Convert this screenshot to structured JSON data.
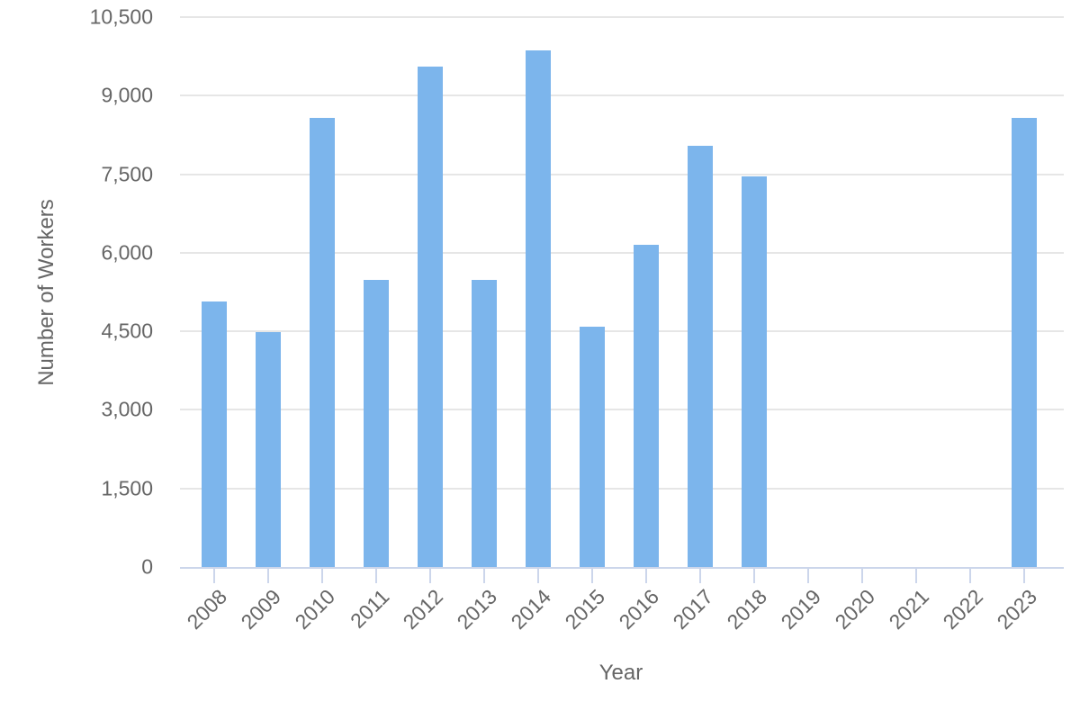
{
  "chart_data": {
    "type": "bar",
    "title": "",
    "xlabel": "Year",
    "ylabel": "Number of Workers",
    "categories": [
      "2008",
      "2009",
      "2010",
      "2011",
      "2012",
      "2013",
      "2014",
      "2015",
      "2016",
      "2017",
      "2018",
      "2019",
      "2020",
      "2021",
      "2022",
      "2023"
    ],
    "values": [
      5070,
      4480,
      8570,
      5480,
      9560,
      5480,
      9870,
      4590,
      6150,
      8050,
      7460,
      0,
      0,
      0,
      0,
      8570
    ],
    "ylim": [
      0,
      10500
    ],
    "yticks": [
      {
        "value": 0,
        "label": "0"
      },
      {
        "value": 1500,
        "label": "1,500"
      },
      {
        "value": 3000,
        "label": "3,000"
      },
      {
        "value": 4500,
        "label": "4,500"
      },
      {
        "value": 6000,
        "label": "6,000"
      },
      {
        "value": 7500,
        "label": "7,500"
      },
      {
        "value": 9000,
        "label": "9,000"
      },
      {
        "value": 10500,
        "label": "10,500"
      }
    ],
    "grid": true,
    "legend": false,
    "colors": {
      "bar": "#7cb5ec",
      "grid": "#e6e6e6",
      "axis_line": "#ccd6eb",
      "text": "#666666",
      "background": "#ffffff"
    }
  }
}
